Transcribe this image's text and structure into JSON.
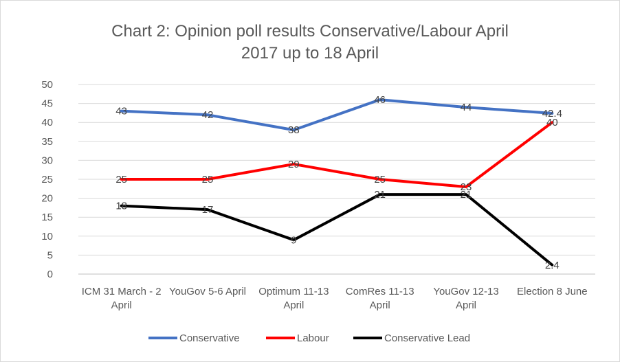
{
  "chart_data": {
    "type": "line",
    "title_lines": [
      "Chart 2: Opinion poll results Conservative/Labour  April",
      "2017 up to 18 April"
    ],
    "categories": [
      [
        "ICM 31 March - 2",
        "April"
      ],
      [
        "YouGov 5-6 April"
      ],
      [
        "Optimum 11-13",
        "April"
      ],
      [
        "ComRes 11-13",
        "April"
      ],
      [
        "YouGov 12-13",
        "April"
      ],
      [
        "Election 8 June"
      ]
    ],
    "ylim": [
      0,
      50
    ],
    "yticks": [
      "0",
      "5",
      "10",
      "15",
      "20",
      "25",
      "30",
      "35",
      "40",
      "45",
      "50"
    ],
    "grid": true,
    "legend_position": "bottom",
    "series": [
      {
        "name": "Conservative",
        "color": "#4472c4",
        "values": [
          43,
          42,
          38,
          46,
          44,
          42.4
        ],
        "labels": [
          "43",
          "42",
          "38",
          "46",
          "44",
          "42.4"
        ]
      },
      {
        "name": "Labour",
        "color": "#ff0000",
        "values": [
          25,
          25,
          29,
          25,
          23,
          40
        ],
        "labels": [
          "25",
          "25",
          "29",
          "25",
          "23",
          "40"
        ]
      },
      {
        "name": "Conservative Lead",
        "color": "#000000",
        "values": [
          18,
          17,
          9,
          21,
          21,
          2.4
        ],
        "labels": [
          "18",
          "17",
          "9",
          "21",
          "21",
          "2.4"
        ]
      }
    ]
  }
}
